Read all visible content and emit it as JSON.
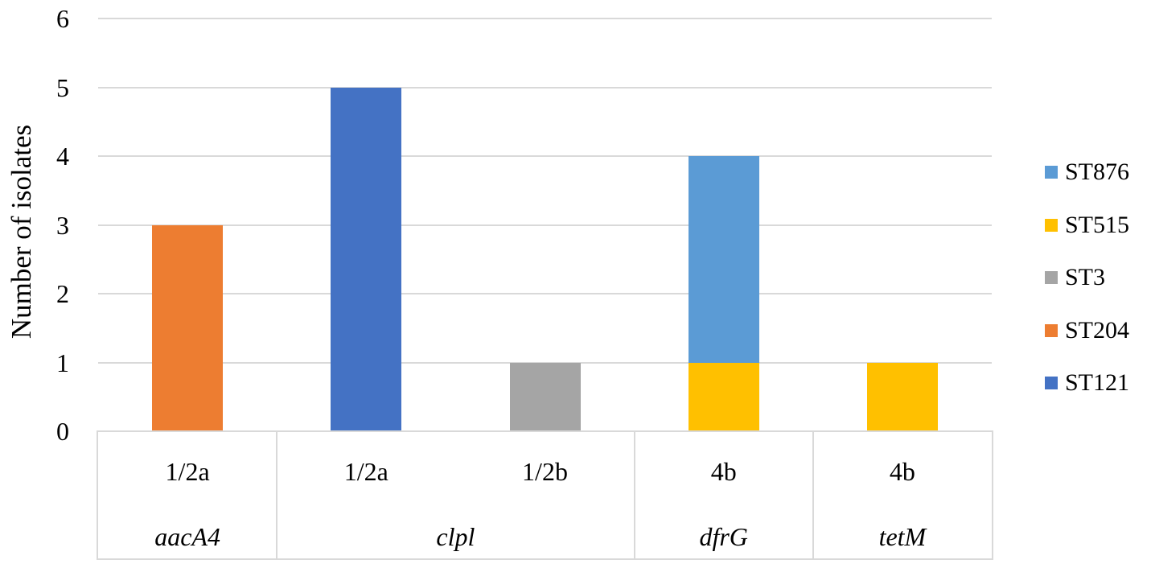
{
  "chart_data": {
    "type": "bar",
    "stacked": true,
    "ylabel": "Number of isolates",
    "xlabel": "",
    "ylim": [
      0,
      6
    ],
    "yticks": [
      0,
      1,
      2,
      3,
      4,
      5,
      6
    ],
    "grid": true,
    "legend_position": "right",
    "colors": {
      "gridline": "#d9d9d9",
      "axis_table_border": "#d9d9d9",
      "text": "#000000",
      "background": "#ffffff"
    },
    "categories_serovar": [
      "1/2a",
      "1/2a",
      "1/2b",
      "4b",
      "4b"
    ],
    "gene_groups": [
      {
        "label": "aacA4",
        "span": 1
      },
      {
        "label": "clpl",
        "span": 2
      },
      {
        "label": "dfrG",
        "span": 1
      },
      {
        "label": "tetM",
        "span": 1
      }
    ],
    "series": [
      {
        "name": "ST876",
        "color": "#5b9bd5",
        "values": [
          0,
          0,
          0,
          3,
          0
        ]
      },
      {
        "name": "ST515",
        "color": "#ffc000",
        "values": [
          0,
          0,
          0,
          1,
          1
        ]
      },
      {
        "name": "ST3",
        "color": "#a5a5a5",
        "values": [
          0,
          0,
          1,
          0,
          0
        ]
      },
      {
        "name": "ST204",
        "color": "#ed7d31",
        "values": [
          3,
          0,
          0,
          0,
          0
        ]
      },
      {
        "name": "ST121",
        "color": "#4472c4",
        "values": [
          0,
          5,
          0,
          0,
          0
        ]
      }
    ],
    "stack_order_note": "stacked bottom-to-top in reverse of series list (ST121 bottom ... ST876 top)",
    "legend": [
      "ST876",
      "ST515",
      "ST3",
      "ST204",
      "ST121"
    ]
  }
}
